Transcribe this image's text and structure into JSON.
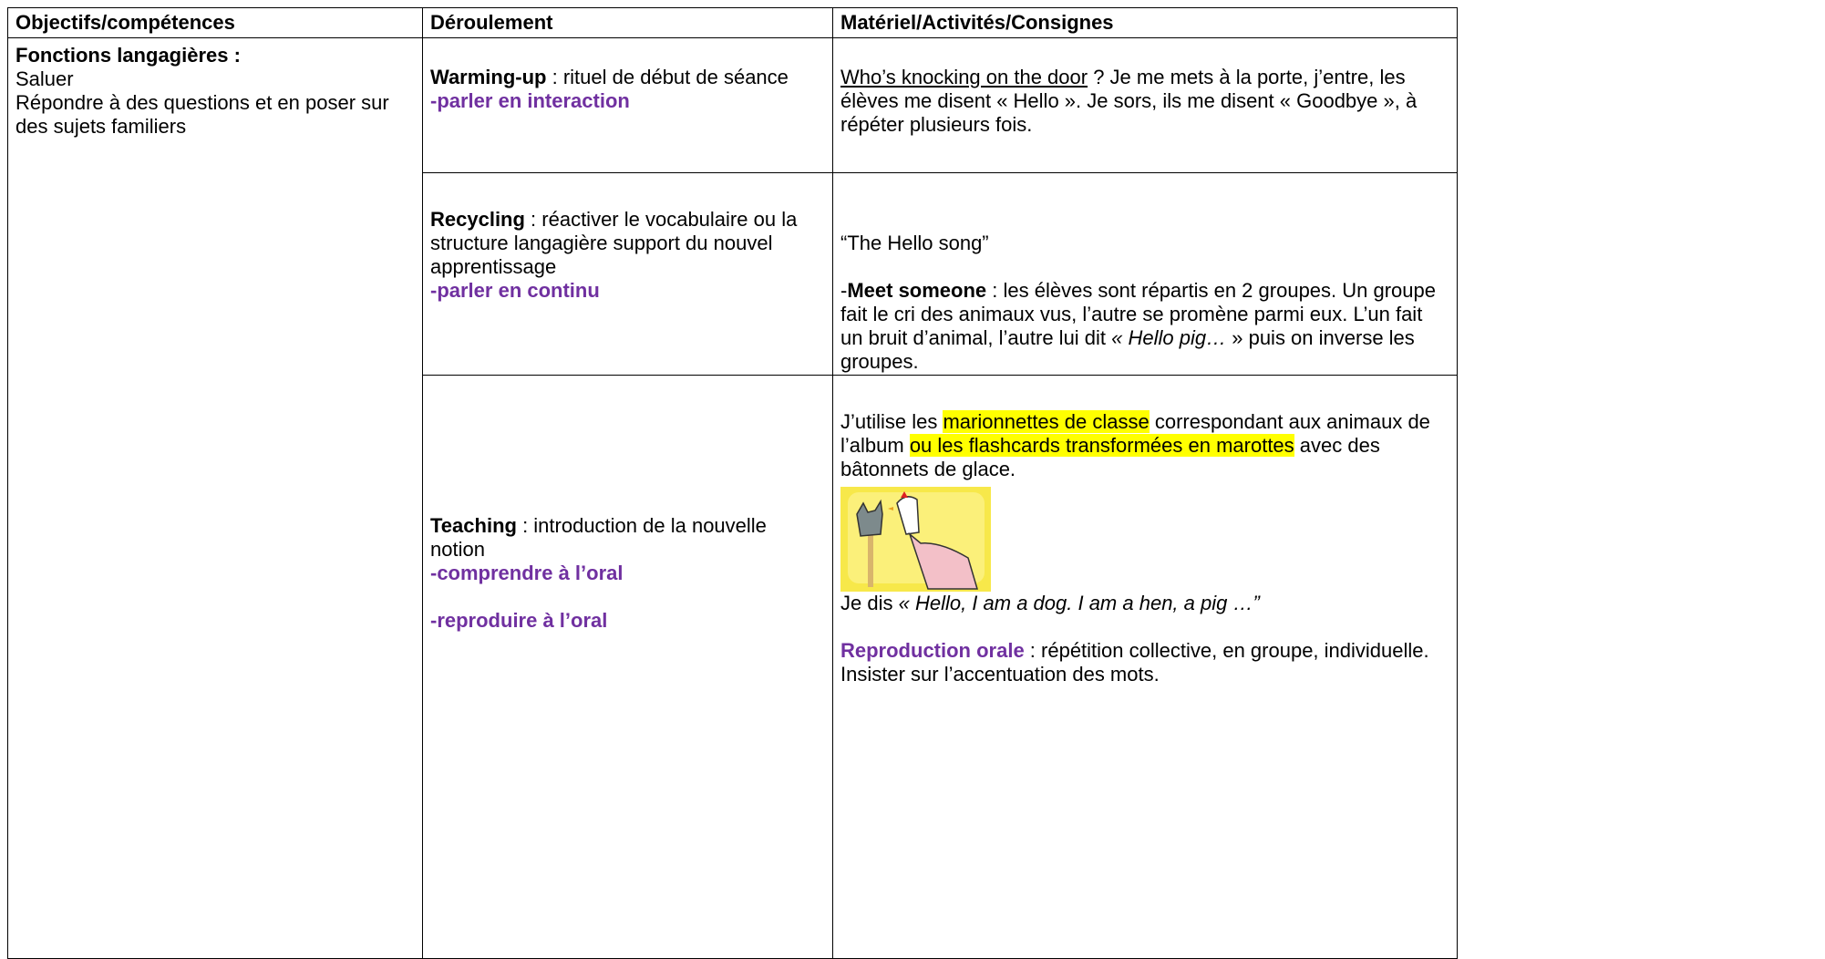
{
  "header": [
    "Objectifs/compétences",
    "Déroulement",
    "Matériel/Activités/Consignes"
  ],
  "objectives": {
    "title": "Fonctions langagières :",
    "lines": [
      "Saluer",
      "Répondre à des questions et en poser sur des sujets familiers"
    ]
  },
  "rows": [
    {
      "step": {
        "name": "Warming-up",
        "desc": " : rituel de début de séance",
        "skills": [
          "-parler en interaction"
        ]
      },
      "material": {
        "link": "Who’s knocking on the door",
        "text": " ? Je me mets à la porte, j’entre, les élèves me disent « Hello ». Je sors, ils me disent « Goodbye », à répéter plusieurs fois."
      }
    },
    {
      "step": {
        "name": "Recycling",
        "desc": " : réactiver le vocabulaire ou la structure langagière support du nouvel apprentissage",
        "skills": [
          "-parler en continu"
        ]
      },
      "material": {
        "song": "“The Hello song”",
        "dash": "-",
        "activity": "Meet someone",
        "text": " : les élèves sont répartis en 2 groupes. Un groupe fait le cri des animaux vus, l’autre se promène parmi eux. L’un fait un bruit d’animal, l’autre lui dit ",
        "quote": "« Hello pig… ",
        "end": "» puis on inverse les groupes."
      }
    },
    {
      "step": {
        "name": "Teaching",
        "desc": " : introduction de la nouvelle notion",
        "skills": [
          "-comprendre à l’oral",
          "-reproduire à l’oral"
        ]
      },
      "material": {
        "intro": [
          "J’utilise les ",
          "marionnettes de classe",
          " correspondant aux animaux de l’album ",
          "ou les flashcards transformées en marottes",
          " avec des bâtonnets de glace."
        ],
        "say": "Je dis ",
        "say_quote": "« Hello, I am a dog. I am a hen, a pig …”",
        "repro_title": "Reproduction orale",
        "repro_text": " : répétition collective, en groupe, individuelle. Insister sur l’accentuation des mots."
      }
    }
  ]
}
